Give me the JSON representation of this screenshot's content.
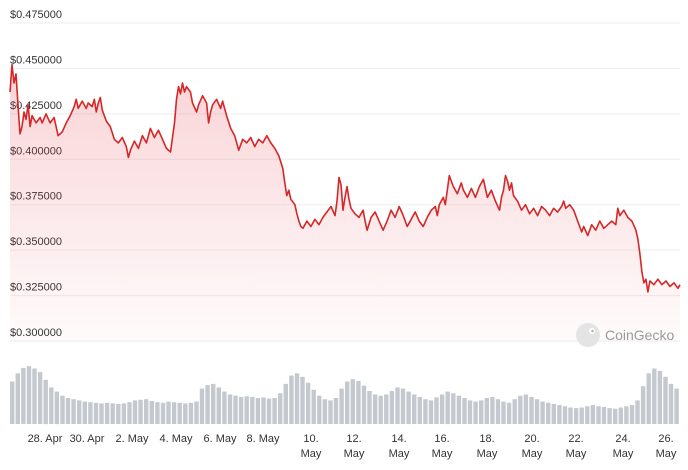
{
  "chart_data": {
    "type": "line",
    "title": "",
    "xlabel": "",
    "ylabel": "",
    "ylim": [
      0.3,
      0.475
    ],
    "y_ticks": [
      "$0.475000",
      "$0.450000",
      "$0.425000",
      "$0.400000",
      "$0.375000",
      "$0.350000",
      "$0.325000",
      "$0.300000"
    ],
    "y_tick_values": [
      0.475,
      0.45,
      0.425,
      0.4,
      0.375,
      0.35,
      0.325,
      0.3
    ],
    "x_range_days": [
      -0.6,
      29.6
    ],
    "x_ticks": [
      {
        "day": 1,
        "line1": "28. Apr",
        "line2": ""
      },
      {
        "day": 3,
        "line1": "30. Apr",
        "line2": ""
      },
      {
        "day": 5,
        "line1": "2. May",
        "line2": ""
      },
      {
        "day": 7,
        "line1": "4. May",
        "line2": ""
      },
      {
        "day": 9,
        "line1": "6. May",
        "line2": ""
      },
      {
        "day": 11,
        "line1": "8. May",
        "line2": ""
      },
      {
        "day": 13,
        "line1": "10.",
        "line2": "May"
      },
      {
        "day": 15,
        "line1": "12.",
        "line2": "May"
      },
      {
        "day": 17,
        "line1": "14.",
        "line2": "May"
      },
      {
        "day": 19,
        "line1": "16.",
        "line2": "May"
      },
      {
        "day": 21,
        "line1": "18.",
        "line2": "May"
      },
      {
        "day": 23,
        "line1": "20.",
        "line2": "May"
      },
      {
        "day": 25,
        "line1": "22.",
        "line2": "May"
      },
      {
        "day": 27,
        "line1": "24.",
        "line2": "May"
      },
      {
        "day": 29,
        "line1": "26.",
        "line2": "May"
      }
    ],
    "grid": true,
    "line_color": "#d62728",
    "volume_bar_color": "#c4c8cf",
    "series": [
      {
        "points": [
          [
            -0.6,
            0.437
          ],
          [
            -0.5,
            0.452
          ],
          [
            -0.4,
            0.442
          ],
          [
            -0.3,
            0.447
          ],
          [
            -0.2,
            0.43
          ],
          [
            -0.1,
            0.414
          ],
          [
            0.0,
            0.418
          ],
          [
            0.1,
            0.426
          ],
          [
            0.2,
            0.422
          ],
          [
            0.3,
            0.43
          ],
          [
            0.4,
            0.418
          ],
          [
            0.5,
            0.424
          ],
          [
            0.7,
            0.42
          ],
          [
            0.9,
            0.423
          ],
          [
            1.0,
            0.42
          ],
          [
            1.2,
            0.425
          ],
          [
            1.4,
            0.42
          ],
          [
            1.6,
            0.423
          ],
          [
            1.7,
            0.418
          ],
          [
            1.8,
            0.413
          ],
          [
            2.0,
            0.415
          ],
          [
            2.2,
            0.42
          ],
          [
            2.4,
            0.424
          ],
          [
            2.6,
            0.429
          ],
          [
            2.7,
            0.433
          ],
          [
            2.8,
            0.428
          ],
          [
            3.0,
            0.432
          ],
          [
            3.2,
            0.428
          ],
          [
            3.3,
            0.431
          ],
          [
            3.5,
            0.429
          ],
          [
            3.6,
            0.433
          ],
          [
            3.7,
            0.426
          ],
          [
            3.8,
            0.431
          ],
          [
            3.9,
            0.434
          ],
          [
            4.0,
            0.427
          ],
          [
            4.2,
            0.421
          ],
          [
            4.4,
            0.418
          ],
          [
            4.6,
            0.411
          ],
          [
            4.8,
            0.409
          ],
          [
            5.0,
            0.412
          ],
          [
            5.2,
            0.407
          ],
          [
            5.3,
            0.401
          ],
          [
            5.4,
            0.405
          ],
          [
            5.6,
            0.41
          ],
          [
            5.8,
            0.406
          ],
          [
            6.0,
            0.413
          ],
          [
            6.2,
            0.409
          ],
          [
            6.4,
            0.417
          ],
          [
            6.6,
            0.412
          ],
          [
            6.8,
            0.416
          ],
          [
            7.0,
            0.411
          ],
          [
            7.2,
            0.406
          ],
          [
            7.4,
            0.404
          ],
          [
            7.6,
            0.42
          ],
          [
            7.7,
            0.433
          ],
          [
            7.8,
            0.44
          ],
          [
            7.9,
            0.436
          ],
          [
            8.0,
            0.442
          ],
          [
            8.1,
            0.437
          ],
          [
            8.2,
            0.44
          ],
          [
            8.4,
            0.437
          ],
          [
            8.5,
            0.431
          ],
          [
            8.7,
            0.426
          ],
          [
            8.8,
            0.43
          ],
          [
            9.0,
            0.435
          ],
          [
            9.2,
            0.431
          ],
          [
            9.3,
            0.42
          ],
          [
            9.4,
            0.426
          ],
          [
            9.5,
            0.43
          ],
          [
            9.7,
            0.433
          ],
          [
            9.9,
            0.428
          ],
          [
            10.0,
            0.432
          ],
          [
            10.2,
            0.424
          ],
          [
            10.4,
            0.417
          ],
          [
            10.6,
            0.413
          ],
          [
            10.8,
            0.405
          ],
          [
            11.0,
            0.411
          ],
          [
            11.2,
            0.409
          ],
          [
            11.4,
            0.412
          ],
          [
            11.6,
            0.407
          ],
          [
            11.8,
            0.411
          ],
          [
            12.0,
            0.409
          ],
          [
            12.2,
            0.413
          ],
          [
            12.4,
            0.409
          ],
          [
            12.6,
            0.406
          ],
          [
            12.8,
            0.402
          ],
          [
            13.0,
            0.395
          ],
          [
            13.1,
            0.387
          ],
          [
            13.2,
            0.38
          ],
          [
            13.3,
            0.383
          ],
          [
            13.4,
            0.378
          ],
          [
            13.6,
            0.375
          ],
          [
            13.7,
            0.37
          ],
          [
            13.8,
            0.366
          ],
          [
            13.9,
            0.363
          ],
          [
            14.0,
            0.362
          ],
          [
            14.2,
            0.366
          ],
          [
            14.4,
            0.363
          ],
          [
            14.6,
            0.367
          ],
          [
            14.8,
            0.364
          ],
          [
            15.0,
            0.368
          ],
          [
            15.2,
            0.371
          ],
          [
            15.4,
            0.374
          ],
          [
            15.6,
            0.369
          ],
          [
            15.7,
            0.377
          ],
          [
            15.8,
            0.39
          ],
          [
            15.9,
            0.386
          ],
          [
            16.0,
            0.372
          ],
          [
            16.1,
            0.379
          ],
          [
            16.2,
            0.385
          ],
          [
            16.3,
            0.378
          ],
          [
            16.4,
            0.373
          ],
          [
            16.6,
            0.37
          ],
          [
            16.8,
            0.368
          ],
          [
            17.0,
            0.372
          ],
          [
            17.1,
            0.366
          ],
          [
            17.2,
            0.361
          ],
          [
            17.4,
            0.368
          ],
          [
            17.6,
            0.371
          ],
          [
            17.8,
            0.366
          ],
          [
            18.0,
            0.361
          ],
          [
            18.2,
            0.366
          ],
          [
            18.4,
            0.372
          ],
          [
            18.6,
            0.368
          ],
          [
            18.8,
            0.374
          ],
          [
            19.0,
            0.369
          ],
          [
            19.2,
            0.363
          ],
          [
            19.4,
            0.367
          ],
          [
            19.6,
            0.371
          ],
          [
            19.8,
            0.366
          ],
          [
            20.0,
            0.363
          ],
          [
            20.2,
            0.368
          ],
          [
            20.4,
            0.372
          ],
          [
            20.6,
            0.374
          ],
          [
            20.7,
            0.369
          ],
          [
            20.8,
            0.375
          ],
          [
            21.0,
            0.379
          ],
          [
            21.1,
            0.375
          ],
          [
            21.2,
            0.383
          ],
          [
            21.3,
            0.391
          ],
          [
            21.4,
            0.388
          ],
          [
            21.5,
            0.385
          ],
          [
            21.7,
            0.381
          ],
          [
            21.9,
            0.387
          ],
          [
            22.0,
            0.383
          ],
          [
            22.2,
            0.379
          ],
          [
            22.4,
            0.384
          ],
          [
            22.6,
            0.379
          ],
          [
            22.8,
            0.385
          ],
          [
            23.0,
            0.389
          ],
          [
            23.1,
            0.384
          ],
          [
            23.2,
            0.379
          ],
          [
            23.4,
            0.383
          ],
          [
            23.6,
            0.377
          ],
          [
            23.8,
            0.372
          ],
          [
            23.9,
            0.379
          ],
          [
            24.0,
            0.383
          ],
          [
            24.1,
            0.391
          ],
          [
            24.2,
            0.388
          ],
          [
            24.3,
            0.383
          ],
          [
            24.4,
            0.387
          ],
          [
            24.5,
            0.38
          ],
          [
            24.7,
            0.377
          ],
          [
            24.9,
            0.372
          ],
          [
            25.1,
            0.375
          ],
          [
            25.3,
            0.37
          ],
          [
            25.5,
            0.373
          ],
          [
            25.7,
            0.369
          ],
          [
            25.9,
            0.374
          ],
          [
            26.1,
            0.372
          ],
          [
            26.3,
            0.369
          ],
          [
            26.5,
            0.373
          ],
          [
            26.7,
            0.371
          ],
          [
            26.9,
            0.374
          ],
          [
            27.0,
            0.377
          ],
          [
            27.1,
            0.373
          ],
          [
            27.3,
            0.375
          ],
          [
            27.5,
            0.372
          ],
          [
            27.7,
            0.366
          ],
          [
            27.9,
            0.36
          ],
          [
            28.0,
            0.363
          ],
          [
            28.2,
            0.358
          ],
          [
            28.4,
            0.364
          ],
          [
            28.6,
            0.361
          ],
          [
            28.8,
            0.366
          ],
          [
            29.0,
            0.362
          ],
          [
            29.2,
            0.364
          ],
          [
            29.4,
            0.366
          ],
          [
            29.6,
            0.364
          ]
        ],
        "tail_points": [
          [
            29.7,
            0.373
          ],
          [
            29.8,
            0.369
          ],
          [
            30.0,
            0.372
          ],
          [
            30.2,
            0.368
          ],
          [
            30.4,
            0.366
          ],
          [
            30.6,
            0.361
          ],
          [
            30.7,
            0.356
          ],
          [
            30.8,
            0.348
          ],
          [
            30.9,
            0.338
          ],
          [
            31.0,
            0.332
          ],
          [
            31.1,
            0.334
          ],
          [
            31.2,
            0.327
          ],
          [
            31.3,
            0.333
          ],
          [
            31.5,
            0.331
          ],
          [
            31.7,
            0.334
          ],
          [
            31.9,
            0.331
          ],
          [
            32.1,
            0.333
          ],
          [
            32.3,
            0.33
          ],
          [
            32.5,
            0.332
          ],
          [
            32.7,
            0.329
          ],
          [
            32.8,
            0.331
          ]
        ]
      }
    ],
    "volume": {
      "range_days": [
        -0.6,
        32.8
      ],
      "values": [
        0.72,
        0.86,
        0.95,
        0.98,
        0.94,
        0.88,
        0.75,
        0.62,
        0.55,
        0.48,
        0.44,
        0.42,
        0.4,
        0.38,
        0.37,
        0.36,
        0.35,
        0.36,
        0.35,
        0.34,
        0.35,
        0.37,
        0.4,
        0.41,
        0.42,
        0.39,
        0.37,
        0.36,
        0.38,
        0.37,
        0.36,
        0.35,
        0.36,
        0.38,
        0.6,
        0.66,
        0.68,
        0.62,
        0.55,
        0.5,
        0.48,
        0.46,
        0.47,
        0.46,
        0.44,
        0.45,
        0.43,
        0.44,
        0.52,
        0.68,
        0.82,
        0.86,
        0.8,
        0.7,
        0.58,
        0.48,
        0.42,
        0.4,
        0.44,
        0.6,
        0.72,
        0.76,
        0.73,
        0.65,
        0.56,
        0.5,
        0.48,
        0.5,
        0.56,
        0.62,
        0.6,
        0.55,
        0.5,
        0.46,
        0.42,
        0.4,
        0.45,
        0.5,
        0.55,
        0.52,
        0.48,
        0.44,
        0.4,
        0.38,
        0.4,
        0.44,
        0.46,
        0.42,
        0.38,
        0.36,
        0.42,
        0.48,
        0.5,
        0.46,
        0.42,
        0.38,
        0.36,
        0.34,
        0.32,
        0.3,
        0.28,
        0.27,
        0.28,
        0.3,
        0.32,
        0.3,
        0.29,
        0.27,
        0.26,
        0.28,
        0.3,
        0.32,
        0.4,
        0.64,
        0.86,
        0.94,
        0.9,
        0.8,
        0.68,
        0.6
      ]
    }
  },
  "watermark": {
    "text": "CoinGecko"
  }
}
